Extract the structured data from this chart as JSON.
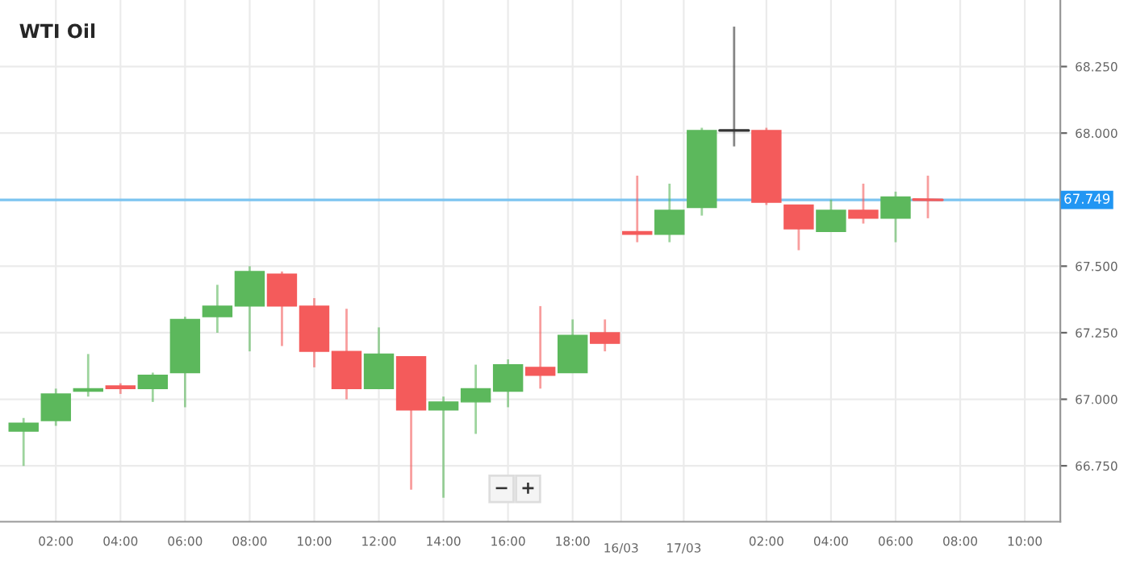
{
  "chart_data": {
    "type": "candlestick",
    "title": "WTI Oil",
    "categories": [
      null,
      "02:00",
      null,
      "04:00",
      null,
      "06:00",
      null,
      "08:00",
      null,
      "10:00",
      null,
      "12:00",
      null,
      "14:00",
      null,
      "16:00",
      null,
      "18:00",
      null,
      null,
      null,
      null,
      null,
      "02:00",
      null,
      "04:00",
      null,
      "06:00",
      null,
      "08:00",
      null,
      "10:00"
    ],
    "ohlc": [
      [
        66.88,
        66.93,
        66.75,
        66.91
      ],
      [
        66.92,
        67.04,
        66.9,
        67.02
      ],
      [
        67.03,
        67.17,
        67.01,
        67.04
      ],
      [
        67.05,
        67.06,
        67.02,
        67.04
      ],
      [
        67.04,
        67.1,
        66.99,
        67.09
      ],
      [
        67.1,
        67.31,
        66.97,
        67.3
      ],
      [
        67.31,
        67.43,
        67.25,
        67.35
      ],
      [
        67.35,
        67.5,
        67.18,
        67.48
      ],
      [
        67.47,
        67.48,
        67.2,
        67.35
      ],
      [
        67.35,
        67.38,
        67.12,
        67.18
      ],
      [
        67.18,
        67.34,
        67.0,
        67.04
      ],
      [
        67.04,
        67.27,
        67.04,
        67.17
      ],
      [
        67.16,
        67.16,
        66.66,
        66.96
      ],
      [
        66.96,
        67.01,
        66.63,
        66.99
      ],
      [
        66.99,
        67.13,
        66.87,
        67.04
      ],
      [
        67.03,
        67.15,
        66.97,
        67.13
      ],
      [
        67.12,
        67.35,
        67.04,
        67.09
      ],
      [
        67.1,
        67.3,
        67.1,
        67.24
      ],
      [
        67.25,
        67.3,
        67.18,
        67.21
      ],
      [
        67.63,
        67.84,
        67.59,
        67.62
      ],
      [
        67.62,
        67.81,
        67.59,
        67.71
      ],
      [
        67.72,
        68.02,
        67.69,
        68.01
      ],
      [
        68.01,
        68.4,
        67.95,
        68.01
      ],
      [
        68.01,
        68.02,
        67.73,
        67.74
      ],
      [
        67.73,
        67.73,
        67.56,
        67.64
      ],
      [
        67.63,
        67.75,
        67.63,
        67.71
      ],
      [
        67.71,
        67.81,
        67.66,
        67.68
      ],
      [
        67.68,
        67.78,
        67.59,
        67.76
      ],
      [
        67.75,
        67.84,
        67.68,
        67.749
      ],
      null,
      null,
      null
    ],
    "colors": [
      "#5cb85c",
      "#5cb85c",
      "#5cb85c",
      "#f45b5b",
      "#5cb85c",
      "#5cb85c",
      "#5cb85c",
      "#5cb85c",
      "#f45b5b",
      "#f45b5b",
      "#f45b5b",
      "#5cb85c",
      "#f45b5b",
      "#5cb85c",
      "#5cb85c",
      "#5cb85c",
      "#f45b5b",
      "#5cb85c",
      "#f45b5b",
      "#f45b5b",
      "#5cb85c",
      "#5cb85c",
      "#333333",
      "#f45b5b",
      "#f45b5b",
      "#5cb85c",
      "#f45b5b",
      "#5cb85c",
      "#f45b5b",
      null,
      null,
      null
    ],
    "ylim": [
      66.54,
      68.5
    ],
    "yticks": [
      {
        "value": 66.75,
        "label": "66.750"
      },
      {
        "value": 67.0,
        "label": "67.000"
      },
      {
        "value": 67.25,
        "label": "67.250"
      },
      {
        "value": 67.5,
        "label": "67.500"
      },
      {
        "value": 68.0,
        "label": "68.000"
      },
      {
        "value": 68.25,
        "label": "68.250"
      }
    ],
    "ref_lines": [
      {
        "axis": "y",
        "value": 67.749,
        "label": "67.749",
        "color": "#7cc4f0"
      }
    ],
    "annotations": [
      "16/03",
      "17/03",
      "−",
      "+"
    ],
    "grid": true
  }
}
